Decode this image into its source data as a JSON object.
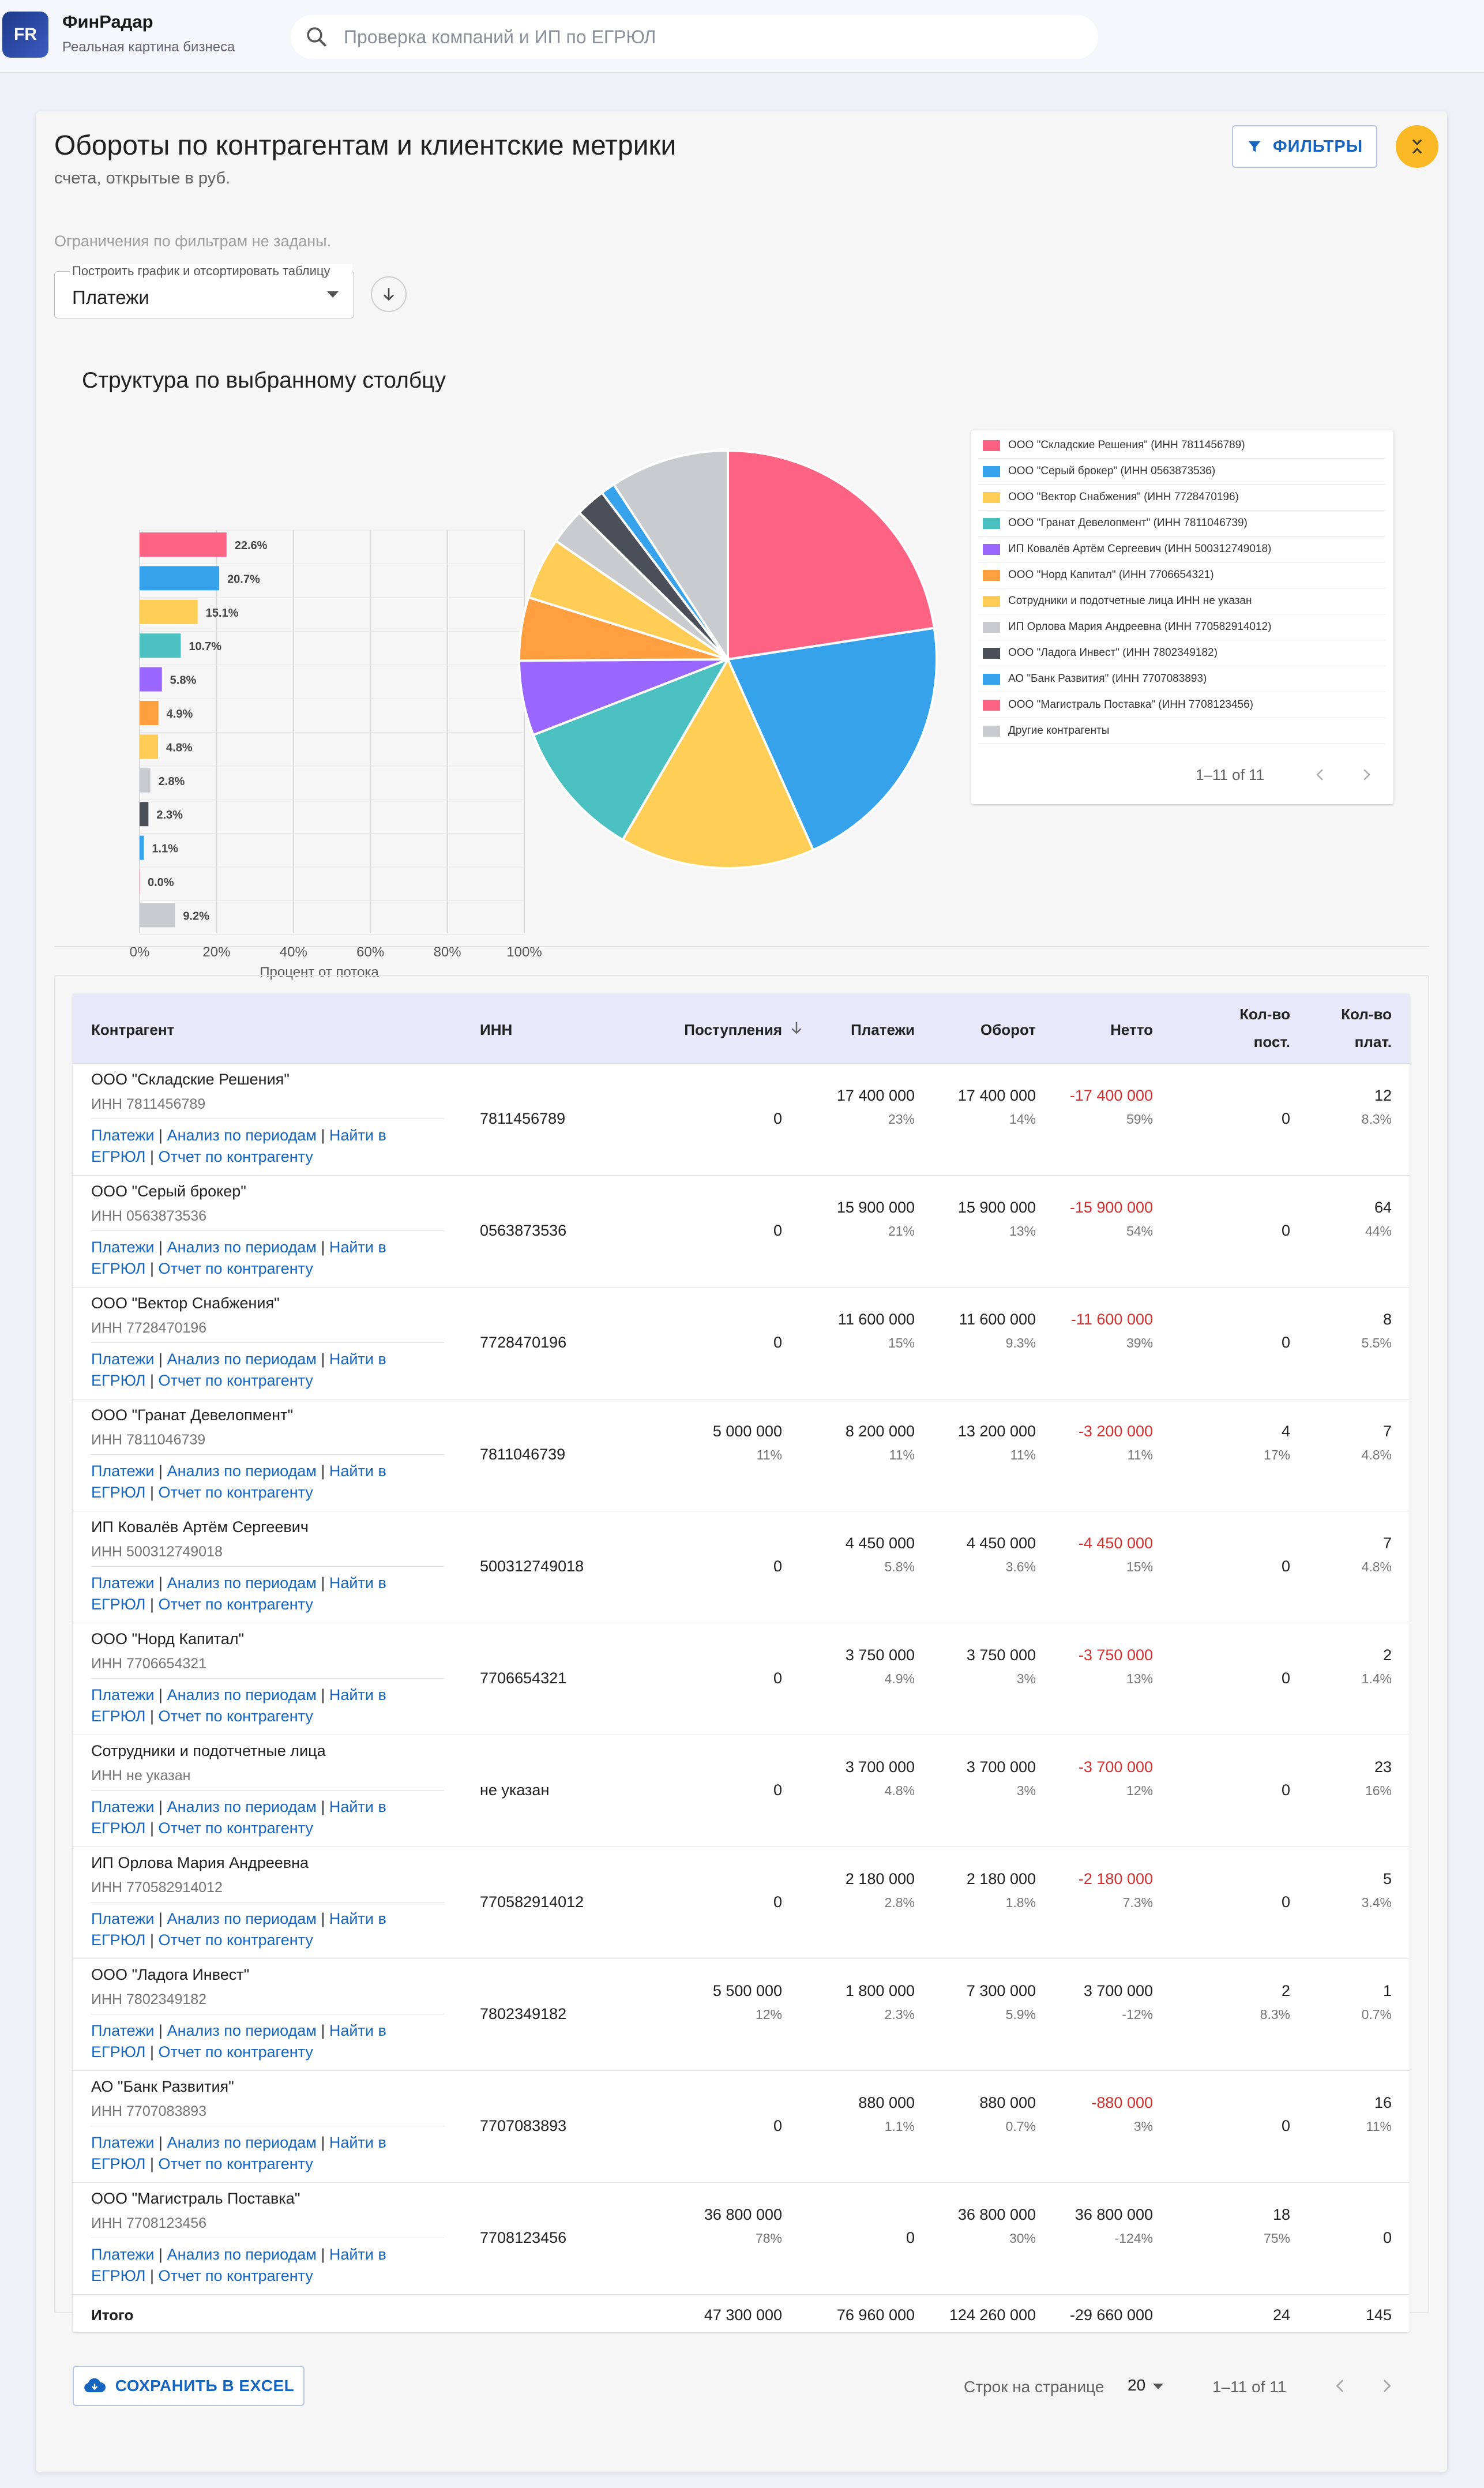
{
  "header": {
    "logo": "FR",
    "brand": "ФинРадар",
    "tagline": "Реальная картина бизнеса",
    "search_placeholder": "Проверка компаний и ИП по ЕГРЮЛ"
  },
  "page": {
    "title": "Обороты по контрагентам и клиентские метрики",
    "subtitle": "счета, открытые в руб.",
    "filters_button": "ФИЛЬТРЫ",
    "no_filters": "Ограничения по фильтрам не заданы.",
    "select_label": "Построить график и отсортировать таблицу",
    "select_value": "Платежи",
    "chart_title": "Структура по выбранному столбцу"
  },
  "colors": [
    "#ff6384",
    "#36a2eb",
    "#ffce56",
    "#4bc0c0",
    "#9966ff",
    "#ff9f40",
    "#ffcd56",
    "#c9cbcf",
    "#4b4f58",
    "#36a2eb",
    "#ff6384",
    "#c9cbcf"
  ],
  "chart_data": [
    {
      "type": "bar",
      "orientation": "horizontal",
      "categories": [
        "ООО \"Складские Решения\" (ИНН 7811456789)",
        "ООО \"Серый брокер\" (ИНН 0563873536)",
        "ООО \"Вектор Снабжения\" (ИНН 7728470196)",
        "ООО \"Гранат Девелопмент\" (ИНН 7811046739)",
        "ИП Ковалёв Артём Сергеевич (ИНН 500312749018)",
        "ООО \"Норд Капитал\" (ИНН 7706654321)",
        "Сотрудники и подотчетные лица ИНН не указан",
        "ИП Орлова Мария Андреевна (ИНН 770582914012)",
        "ООО \"Ладога Инвест\" (ИНН 7802349182)",
        "АО \"Банк Развития\" (ИНН 7707083893)",
        "ООО \"Магистраль Поставка\" (ИНН 7708123456)",
        "Другие контрагенты"
      ],
      "values": [
        22.6,
        20.7,
        15.1,
        10.7,
        5.8,
        4.9,
        4.8,
        2.8,
        2.3,
        1.1,
        0.0,
        9.2
      ],
      "labels": [
        "22.6%",
        "20.7%",
        "15.1%",
        "10.7%",
        "5.8%",
        "4.9%",
        "4.8%",
        "2.8%",
        "2.3%",
        "1.1%",
        "0.0%",
        "9.2%"
      ],
      "xticks": [
        "0%",
        "20%",
        "40%",
        "60%",
        "80%",
        "100%"
      ],
      "xlim": [
        0,
        100
      ],
      "xlabel": "Процент от потока",
      "grid": true
    },
    {
      "type": "pie",
      "categories": [
        "ООО \"Складские Решения\" (ИНН 7811456789)",
        "ООО \"Серый брокер\" (ИНН 0563873536)",
        "ООО \"Вектор Снабжения\" (ИНН 7728470196)",
        "ООО \"Гранат Девелопмент\" (ИНН 7811046739)",
        "ИП Ковалёв Артём Сергеевич (ИНН 500312749018)",
        "ООО \"Норд Капитал\" (ИНН 7706654321)",
        "Сотрудники и подотчетные лица ИНН не указан",
        "ИП Орлова Мария Андреевна (ИНН 770582914012)",
        "ООО \"Ладога Инвест\" (ИНН 7802349182)",
        "АО \"Банк Развития\" (ИНН 7707083893)",
        "ООО \"Магистраль Поставка\" (ИНН 7708123456)",
        "Другие контрагенты"
      ],
      "values": [
        22.6,
        20.7,
        15.1,
        10.7,
        5.8,
        4.9,
        4.8,
        2.8,
        2.3,
        1.1,
        0.0,
        9.2
      ]
    }
  ],
  "legend": {
    "items": [
      "ООО \"Складские Решения\" (ИНН 7811456789)",
      "ООО \"Серый брокер\" (ИНН 0563873536)",
      "ООО \"Вектор Снабжения\" (ИНН 7728470196)",
      "ООО \"Гранат Девелопмент\" (ИНН 7811046739)",
      "ИП Ковалёв Артём Сергеевич (ИНН 500312749018)",
      "ООО \"Норд Капитал\" (ИНН 7706654321)",
      "Сотрудники и подотчетные лица ИНН не указан",
      "ИП Орлова Мария Андреевна (ИНН 770582914012)",
      "ООО \"Ладога Инвест\" (ИНН 7802349182)",
      "АО \"Банк Развития\" (ИНН 7707083893)",
      "ООО \"Магистраль Поставка\" (ИНН 7708123456)",
      "Другие контрагенты"
    ],
    "pager": "1–11 of 11"
  },
  "table": {
    "headers": {
      "name": "Контрагент",
      "inn": "ИНН",
      "income": "Поступления",
      "payments": "Платежи",
      "turnover": "Оборот",
      "net": "Нетто",
      "cnt_in_1": "Кол-во",
      "cnt_in_2": "пост.",
      "cnt_out_1": "Кол-во",
      "cnt_out_2": "плат."
    },
    "links": {
      "payments": "Платежи",
      "periods": "Анализ по периодам",
      "find": "Найти в ЕГРЮЛ",
      "report": "Отчет по контрагенту",
      "sep": "|"
    },
    "rows": [
      {
        "name": "ООО \"Складские Решения\"",
        "inn_label": "ИНН 7811456789",
        "inn": "7811456789",
        "income": "0",
        "income_pct": "",
        "payments": "17 400 000",
        "payments_pct": "23%",
        "turnover": "17 400 000",
        "turnover_pct": "14%",
        "net": "-17 400 000",
        "net_pct": "59%",
        "neg": true,
        "cnt_in": "0",
        "cnt_in_pct": "",
        "cnt_out": "12",
        "cnt_out_pct": "8.3%"
      },
      {
        "name": "ООО \"Серый брокер\"",
        "inn_label": "ИНН 0563873536",
        "inn": "0563873536",
        "income": "0",
        "income_pct": "",
        "payments": "15 900 000",
        "payments_pct": "21%",
        "turnover": "15 900 000",
        "turnover_pct": "13%",
        "net": "-15 900 000",
        "net_pct": "54%",
        "neg": true,
        "cnt_in": "0",
        "cnt_in_pct": "",
        "cnt_out": "64",
        "cnt_out_pct": "44%"
      },
      {
        "name": "ООО \"Вектор Снабжения\"",
        "inn_label": "ИНН 7728470196",
        "inn": "7728470196",
        "income": "0",
        "income_pct": "",
        "payments": "11 600 000",
        "payments_pct": "15%",
        "turnover": "11 600 000",
        "turnover_pct": "9.3%",
        "net": "-11 600 000",
        "net_pct": "39%",
        "neg": true,
        "cnt_in": "0",
        "cnt_in_pct": "",
        "cnt_out": "8",
        "cnt_out_pct": "5.5%"
      },
      {
        "name": "ООО \"Гранат Девелопмент\"",
        "inn_label": "ИНН 7811046739",
        "inn": "7811046739",
        "income": "5 000 000",
        "income_pct": "11%",
        "payments": "8 200 000",
        "payments_pct": "11%",
        "turnover": "13 200 000",
        "turnover_pct": "11%",
        "net": "-3 200 000",
        "net_pct": "11%",
        "neg": true,
        "cnt_in": "4",
        "cnt_in_pct": "17%",
        "cnt_out": "7",
        "cnt_out_pct": "4.8%"
      },
      {
        "name": "ИП Ковалёв Артём Сергеевич",
        "inn_label": "ИНН 500312749018",
        "inn": "500312749018",
        "income": "0",
        "income_pct": "",
        "payments": "4 450 000",
        "payments_pct": "5.8%",
        "turnover": "4 450 000",
        "turnover_pct": "3.6%",
        "net": "-4 450 000",
        "net_pct": "15%",
        "neg": true,
        "cnt_in": "0",
        "cnt_in_pct": "",
        "cnt_out": "7",
        "cnt_out_pct": "4.8%"
      },
      {
        "name": "ООО \"Норд Капитал\"",
        "inn_label": "ИНН 7706654321",
        "inn": "7706654321",
        "income": "0",
        "income_pct": "",
        "payments": "3 750 000",
        "payments_pct": "4.9%",
        "turnover": "3 750 000",
        "turnover_pct": "3%",
        "net": "-3 750 000",
        "net_pct": "13%",
        "neg": true,
        "cnt_in": "0",
        "cnt_in_pct": "",
        "cnt_out": "2",
        "cnt_out_pct": "1.4%"
      },
      {
        "name": "Сотрудники и подотчетные лица",
        "inn_label": "ИНН не указан",
        "inn": "не указан",
        "income": "0",
        "income_pct": "",
        "payments": "3 700 000",
        "payments_pct": "4.8%",
        "turnover": "3 700 000",
        "turnover_pct": "3%",
        "net": "-3 700 000",
        "net_pct": "12%",
        "neg": true,
        "cnt_in": "0",
        "cnt_in_pct": "",
        "cnt_out": "23",
        "cnt_out_pct": "16%"
      },
      {
        "name": "ИП Орлова Мария Андреевна",
        "inn_label": "ИНН 770582914012",
        "inn": "770582914012",
        "income": "0",
        "income_pct": "",
        "payments": "2 180 000",
        "payments_pct": "2.8%",
        "turnover": "2 180 000",
        "turnover_pct": "1.8%",
        "net": "-2 180 000",
        "net_pct": "7.3%",
        "neg": true,
        "cnt_in": "0",
        "cnt_in_pct": "",
        "cnt_out": "5",
        "cnt_out_pct": "3.4%"
      },
      {
        "name": "ООО \"Ладога Инвест\"",
        "inn_label": "ИНН 7802349182",
        "inn": "7802349182",
        "income": "5 500 000",
        "income_pct": "12%",
        "payments": "1 800 000",
        "payments_pct": "2.3%",
        "turnover": "7 300 000",
        "turnover_pct": "5.9%",
        "net": "3 700 000",
        "net_pct": "-12%",
        "neg": false,
        "cnt_in": "2",
        "cnt_in_pct": "8.3%",
        "cnt_out": "1",
        "cnt_out_pct": "0.7%"
      },
      {
        "name": "АО \"Банк Развития\"",
        "inn_label": "ИНН 7707083893",
        "inn": "7707083893",
        "income": "0",
        "income_pct": "",
        "payments": "880 000",
        "payments_pct": "1.1%",
        "turnover": "880 000",
        "turnover_pct": "0.7%",
        "net": "-880 000",
        "net_pct": "3%",
        "neg": true,
        "cnt_in": "0",
        "cnt_in_pct": "",
        "cnt_out": "16",
        "cnt_out_pct": "11%"
      },
      {
        "name": "ООО \"Магистраль Поставка\"",
        "inn_label": "ИНН 7708123456",
        "inn": "7708123456",
        "income": "36 800 000",
        "income_pct": "78%",
        "payments": "0",
        "payments_pct": "",
        "turnover": "36 800 000",
        "turnover_pct": "30%",
        "net": "36 800 000",
        "net_pct": "-124%",
        "neg": false,
        "cnt_in": "18",
        "cnt_in_pct": "75%",
        "cnt_out": "0",
        "cnt_out_pct": ""
      }
    ],
    "total": {
      "label": "Итого",
      "income": "47 300 000",
      "payments": "76 960 000",
      "turnover": "124 260 000",
      "net": "-29 660 000",
      "cnt_in": "24",
      "cnt_out": "145"
    }
  },
  "footer": {
    "save_button": "СОХРАНИТЬ В EXCEL",
    "rows_per_page_label": "Строк на странице",
    "rows_per_page": "20",
    "range": "1–11 of 11"
  }
}
